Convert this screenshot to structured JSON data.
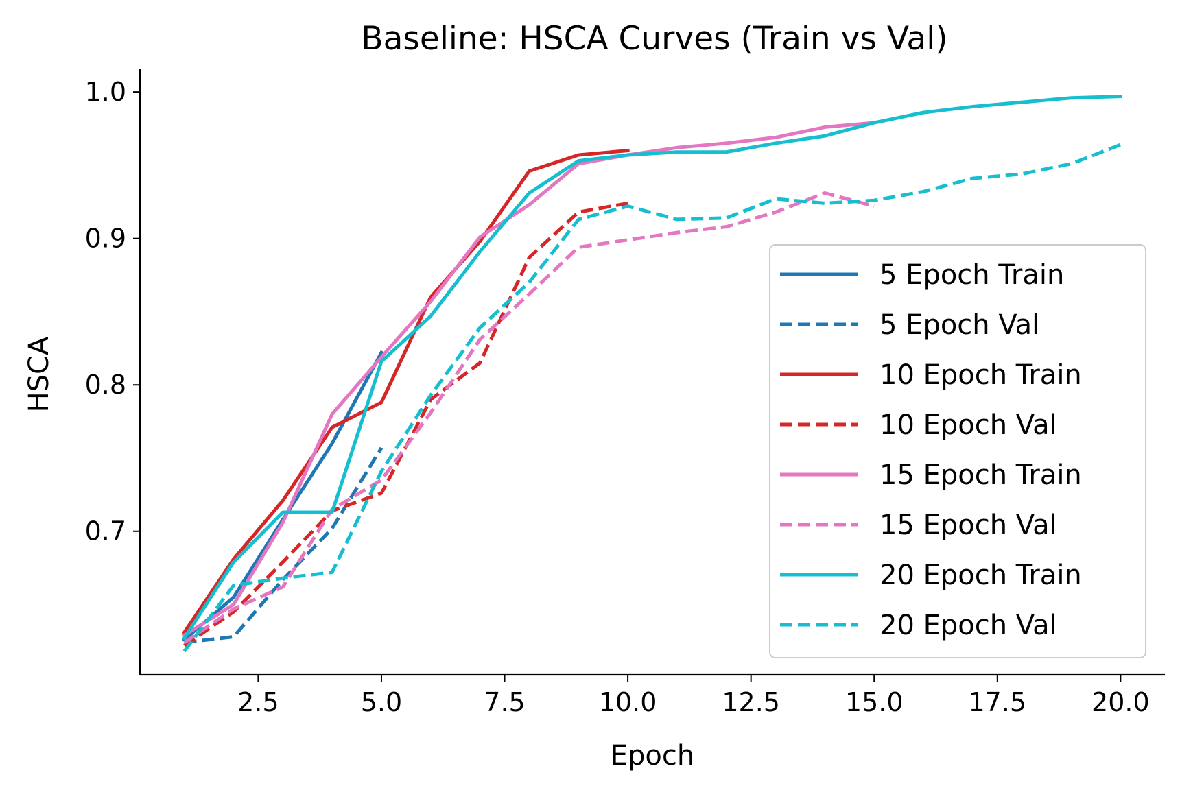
{
  "chart_data": {
    "type": "line",
    "title": "Baseline: HSCA Curves (Train vs Val)",
    "xlabel": "Epoch",
    "ylabel": "HSCA",
    "xlim": [
      0.1,
      20.9
    ],
    "ylim": [
      0.602,
      1.016
    ],
    "xticks": [
      2.5,
      5.0,
      7.5,
      10.0,
      12.5,
      15.0,
      17.5,
      20.0
    ],
    "xtick_labels": [
      "2.5",
      "5.0",
      "7.5",
      "10.0",
      "12.5",
      "15.0",
      "17.5",
      "20.0"
    ],
    "yticks": [
      0.7,
      0.8,
      0.9,
      1.0
    ],
    "ytick_labels": [
      "0.7",
      "0.8",
      "0.9",
      "1.0"
    ],
    "grid": false,
    "legend_position": "center-right",
    "series": [
      {
        "name": "5 Epoch Train",
        "color": "#1f77b4",
        "style": "solid",
        "x": [
          1,
          2,
          3,
          4,
          5
        ],
        "y": [
          0.626,
          0.655,
          0.708,
          0.76,
          0.822
        ]
      },
      {
        "name": "5 Epoch Val",
        "color": "#1f77b4",
        "style": "dashed",
        "x": [
          1,
          2,
          3,
          4,
          5
        ],
        "y": [
          0.624,
          0.628,
          0.667,
          0.702,
          0.757
        ]
      },
      {
        "name": "10 Epoch Train",
        "color": "#d62728",
        "style": "solid",
        "x": [
          1,
          2,
          3,
          4,
          5,
          6,
          7,
          8,
          9,
          10
        ],
        "y": [
          0.631,
          0.681,
          0.721,
          0.771,
          0.788,
          0.86,
          0.898,
          0.946,
          0.957,
          0.96
        ]
      },
      {
        "name": "10 Epoch Val",
        "color": "#d62728",
        "style": "dashed",
        "x": [
          1,
          2,
          3,
          4,
          5,
          6,
          7,
          8,
          9,
          10
        ],
        "y": [
          0.622,
          0.645,
          0.679,
          0.714,
          0.726,
          0.79,
          0.815,
          0.887,
          0.918,
          0.924
        ]
      },
      {
        "name": "15 Epoch Train",
        "color": "#e377c2",
        "style": "solid",
        "x": [
          1,
          2,
          3,
          4,
          5,
          6,
          7,
          8,
          9,
          10,
          11,
          12,
          13,
          14,
          15
        ],
        "y": [
          0.629,
          0.65,
          0.706,
          0.78,
          0.819,
          0.857,
          0.901,
          0.923,
          0.951,
          0.957,
          0.962,
          0.965,
          0.969,
          0.976,
          0.979
        ]
      },
      {
        "name": "15 Epoch Val",
        "color": "#e377c2",
        "style": "dashed",
        "x": [
          1,
          2,
          3,
          4,
          5,
          6,
          7,
          8,
          9,
          10,
          11,
          12,
          13,
          14,
          15
        ],
        "y": [
          0.624,
          0.647,
          0.662,
          0.715,
          0.735,
          0.781,
          0.831,
          0.862,
          0.894,
          0.899,
          0.904,
          0.908,
          0.918,
          0.931,
          0.922
        ]
      },
      {
        "name": "20 Epoch Train",
        "color": "#17becf",
        "style": "solid",
        "x": [
          1,
          2,
          3,
          4,
          5,
          6,
          7,
          8,
          9,
          10,
          11,
          12,
          13,
          14,
          15,
          16,
          17,
          18,
          19,
          20
        ],
        "y": [
          0.627,
          0.679,
          0.713,
          0.713,
          0.816,
          0.847,
          0.891,
          0.931,
          0.953,
          0.957,
          0.959,
          0.959,
          0.965,
          0.97,
          0.979,
          0.986,
          0.99,
          0.993,
          0.996,
          0.997
        ]
      },
      {
        "name": "20 Epoch Val",
        "color": "#17becf",
        "style": "dashed",
        "x": [
          1,
          2,
          3,
          4,
          5,
          6,
          7,
          8,
          9,
          10,
          11,
          12,
          13,
          14,
          15,
          16,
          17,
          18,
          19,
          20
        ],
        "y": [
          0.618,
          0.663,
          0.668,
          0.672,
          0.741,
          0.793,
          0.839,
          0.87,
          0.913,
          0.922,
          0.913,
          0.914,
          0.927,
          0.924,
          0.926,
          0.932,
          0.941,
          0.944,
          0.951,
          0.964
        ]
      }
    ]
  }
}
